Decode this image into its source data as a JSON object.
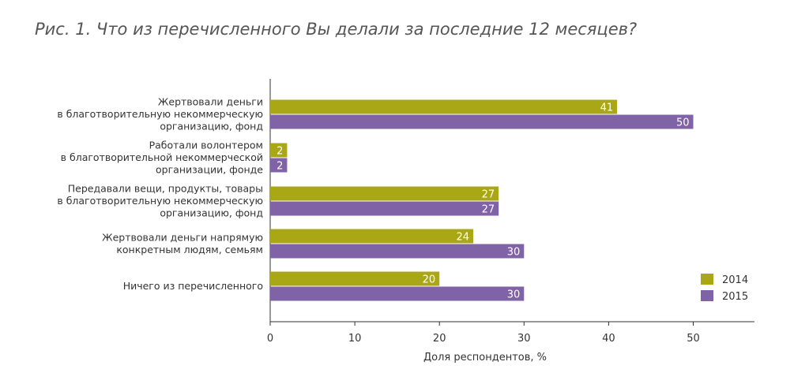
{
  "chart_data": {
    "type": "bar",
    "orientation": "horizontal",
    "title": "Рис. 1. Что из перечисленного Вы делали за последние 12 месяцев?",
    "xlabel": "Доля респондентов, %",
    "ylabel": "",
    "xlim": [
      0,
      57
    ],
    "xticks": [
      0,
      10,
      20,
      30,
      40,
      50
    ],
    "grid": false,
    "legend_position": "bottom-right",
    "categories": [
      [
        "Жертвовали деньги",
        "в благотворительную некоммерческую",
        "организацию, фонд"
      ],
      [
        "Работали волонтером",
        "в благотворительной некоммерческой",
        "организации, фонде"
      ],
      [
        "Передавали вещи, продукты, товары",
        "в благотворительную некоммерческую",
        "организацию, фонд"
      ],
      [
        "Жертвовали деньги напрямую",
        "конкретным людям, семьям"
      ],
      [
        "Ничего из перечисленного"
      ]
    ],
    "series": [
      {
        "name": "2014",
        "color": "#aaa716",
        "values": [
          41,
          2,
          27,
          24,
          20
        ]
      },
      {
        "name": "2015",
        "color": "#8063a6",
        "values": [
          50,
          2,
          27,
          30,
          30
        ]
      }
    ]
  }
}
